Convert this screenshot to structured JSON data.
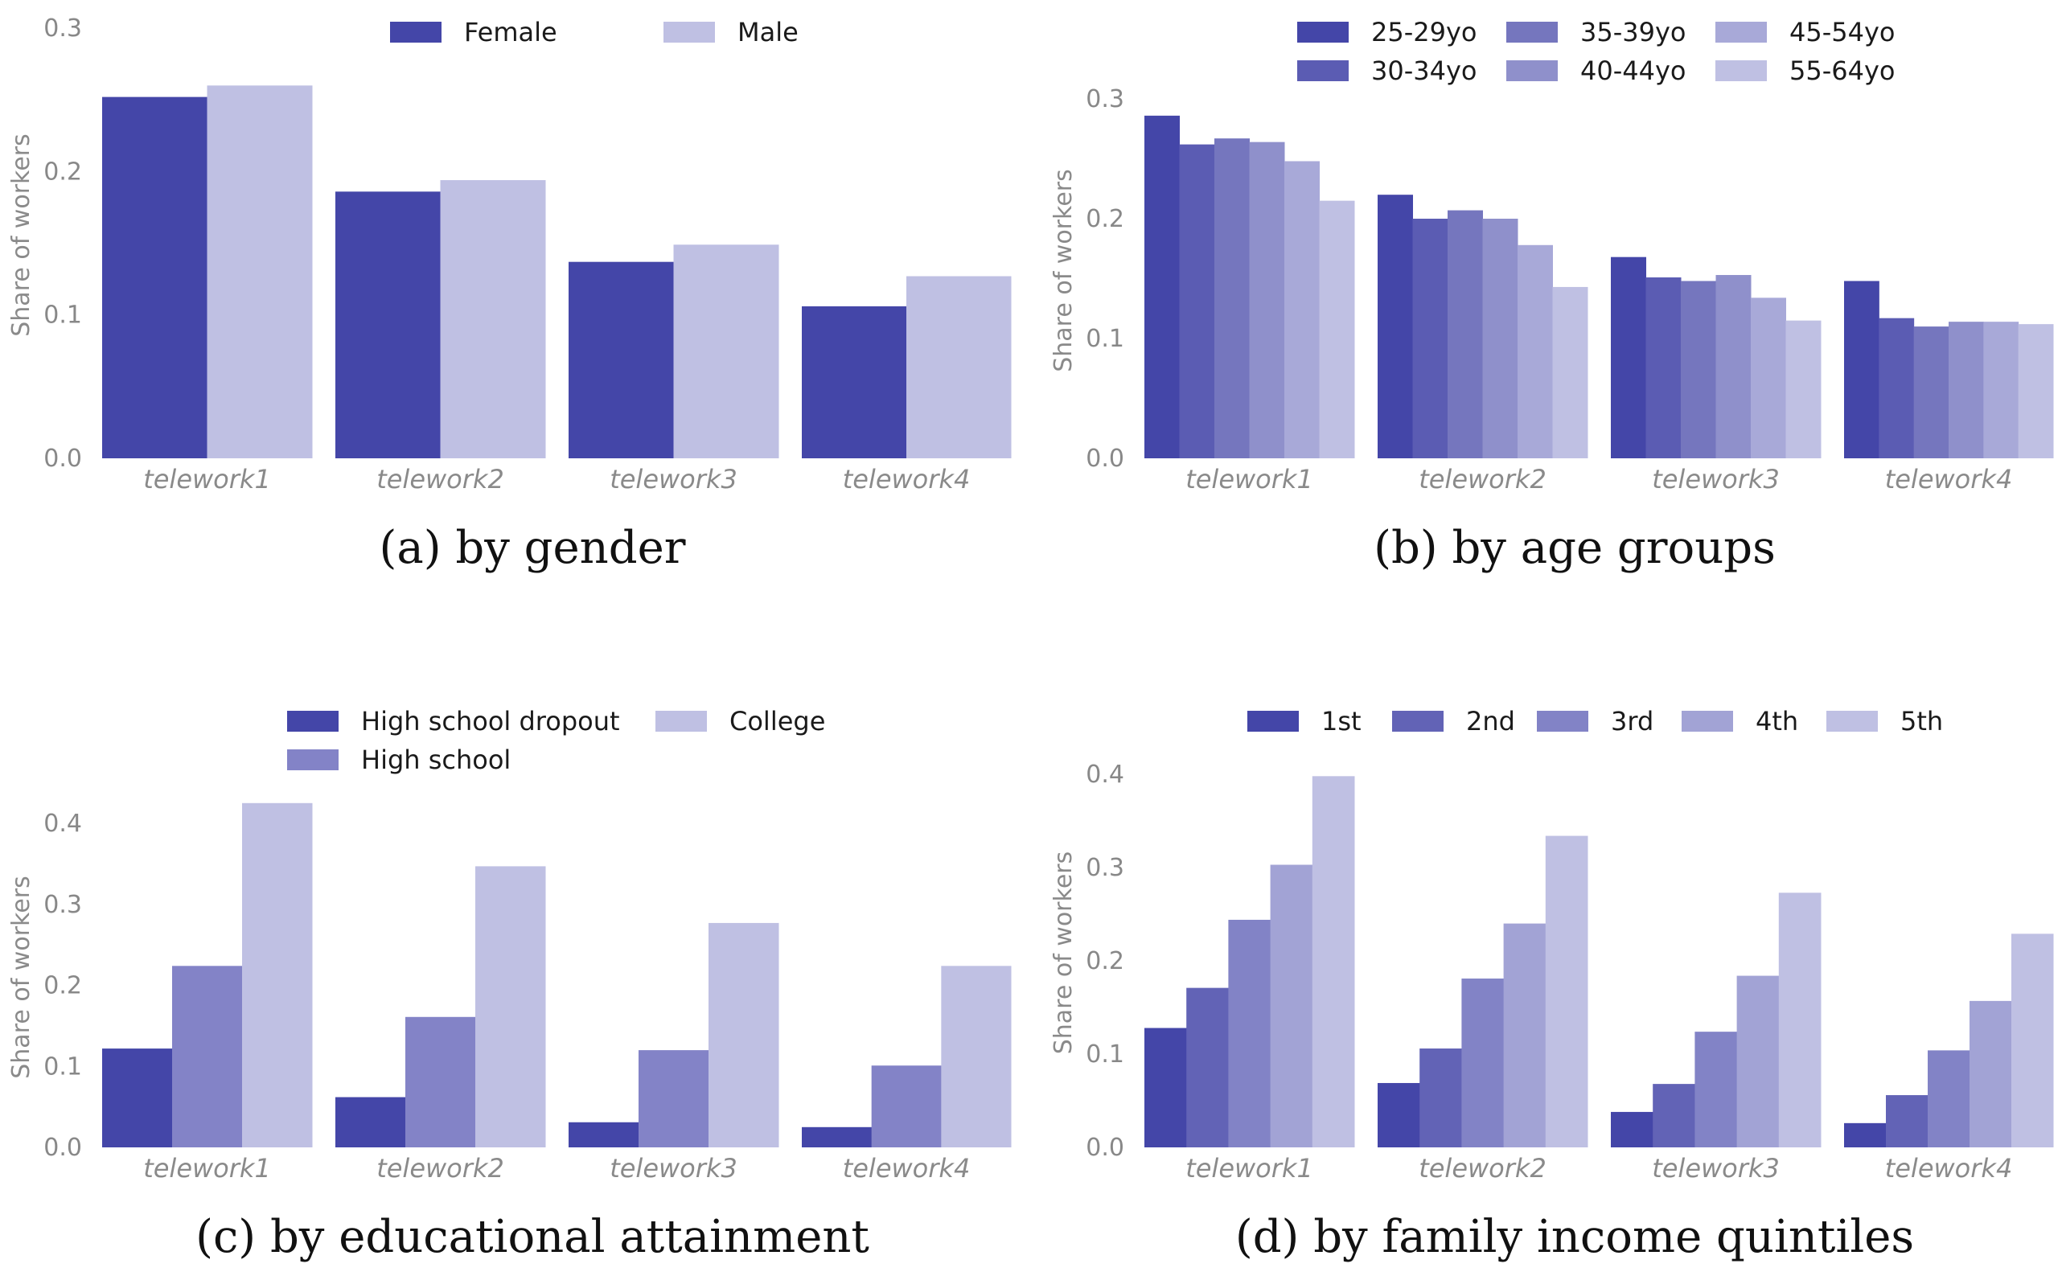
{
  "colors": {
    "shades2": [
      "#4446a8",
      "#bfc0e3"
    ],
    "shades3": [
      "#4446a8",
      "#8383c7",
      "#bfc0e3"
    ],
    "shades5": [
      "#4446a8",
      "#6263b6",
      "#8283c6",
      "#a2a3d5",
      "#bfc0e3"
    ],
    "shades6": [
      "#4446a8",
      "#5b5cb3",
      "#7576be",
      "#8f90cb",
      "#a8a9d8",
      "#bfc0e3"
    ],
    "tick": "#888888"
  },
  "chart_data": [
    {
      "type": "bar",
      "caption": "(a) by gender",
      "ylabel": "Share of workers",
      "categories": [
        "telework1",
        "telework2",
        "telework3",
        "telework4"
      ],
      "ylim": [
        0,
        0.3
      ],
      "yticks": [
        "0.0",
        "0.1",
        "0.2",
        "0.3"
      ],
      "legend_position": "top-center",
      "legend_columns": 2,
      "series": [
        {
          "name": "Female",
          "values": [
            0.252,
            0.186,
            0.137,
            0.106
          ]
        },
        {
          "name": "Male",
          "values": [
            0.26,
            0.194,
            0.149,
            0.127
          ]
        }
      ]
    },
    {
      "type": "bar",
      "caption": "(b) by age groups",
      "ylabel": "Share of workers",
      "categories": [
        "telework1",
        "telework2",
        "telework3",
        "telework4"
      ],
      "ylim": [
        0,
        0.3
      ],
      "yticks": [
        "0.0",
        "0.1",
        "0.2",
        "0.3"
      ],
      "legend_position": "top-right",
      "legend_columns": 3,
      "series": [
        {
          "name": "25-29yo",
          "values": [
            0.286,
            0.22,
            0.168,
            0.148
          ]
        },
        {
          "name": "30-34yo",
          "values": [
            0.262,
            0.2,
            0.151,
            0.117
          ]
        },
        {
          "name": "35-39yo",
          "values": [
            0.267,
            0.207,
            0.148,
            0.11
          ]
        },
        {
          "name": "40-44yo",
          "values": [
            0.264,
            0.2,
            0.153,
            0.114
          ]
        },
        {
          "name": "45-54yo",
          "values": [
            0.248,
            0.178,
            0.134,
            0.114
          ]
        },
        {
          "name": "55-64yo",
          "values": [
            0.215,
            0.143,
            0.115,
            0.112
          ]
        }
      ]
    },
    {
      "type": "bar",
      "caption": "(c) by educational attainment",
      "ylabel": "Share of workers",
      "categories": [
        "telework1",
        "telework2",
        "telework3",
        "telework4"
      ],
      "ylim": [
        0,
        0.4
      ],
      "yticks": [
        "0.0",
        "0.1",
        "0.2",
        "0.3",
        "0.4"
      ],
      "legend_position": "top-center",
      "legend_columns": 2,
      "series": [
        {
          "name": "High school dropout",
          "values": [
            0.122,
            0.062,
            0.031,
            0.025
          ]
        },
        {
          "name": "High school",
          "values": [
            0.224,
            0.161,
            0.12,
            0.101
          ]
        },
        {
          "name": "College",
          "values": [
            0.425,
            0.347,
            0.277,
            0.224
          ]
        }
      ]
    },
    {
      "type": "bar",
      "caption": "(d) by family income quintiles",
      "ylabel": "Share of workers",
      "categories": [
        "telework1",
        "telework2",
        "telework3",
        "telework4"
      ],
      "ylim": [
        0,
        0.4
      ],
      "yticks": [
        "0.0",
        "0.1",
        "0.2",
        "0.3",
        "0.4"
      ],
      "legend_position": "top-center",
      "legend_columns": 5,
      "series": [
        {
          "name": "1st",
          "values": [
            0.128,
            0.069,
            0.038,
            0.026
          ]
        },
        {
          "name": "2nd",
          "values": [
            0.171,
            0.106,
            0.068,
            0.056
          ]
        },
        {
          "name": "3rd",
          "values": [
            0.244,
            0.181,
            0.124,
            0.104
          ]
        },
        {
          "name": "4th",
          "values": [
            0.303,
            0.24,
            0.184,
            0.157
          ]
        },
        {
          "name": "5th",
          "values": [
            0.398,
            0.334,
            0.273,
            0.229
          ]
        }
      ]
    }
  ]
}
